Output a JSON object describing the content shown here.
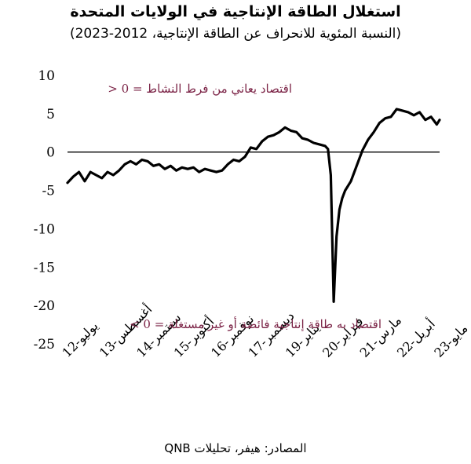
{
  "chart_data": {
    "type": "line",
    "title": "استغلال الطاقة الإنتاجية في الولايات المتحدة",
    "subtitle": "(النسبة المئوية للانحراف عن الطاقة الإنتاجية، 2012-2023)",
    "source": "المصادر: هيفر، تحليلات QNB",
    "ylim": [
      -25,
      10
    ],
    "yticks": [
      10,
      5,
      0,
      -5,
      -10,
      -15,
      -20,
      -25
    ],
    "ytick_labels": [
      "10",
      "5",
      "0",
      "-5",
      "-10",
      "-15",
      "-20",
      "-25"
    ],
    "xlim": [
      "2012-07",
      "2023-05"
    ],
    "xticks": [
      "2012-07",
      "2013-08",
      "2014-09",
      "2015-10",
      "2016-11",
      "2017-12",
      "2019-01",
      "2020-02",
      "2021-03",
      "2022-04",
      "2023-05"
    ],
    "xtick_labels": [
      "يوليو-12",
      "أغسطس-13",
      "سبتمبر-14",
      "أكتوبر-15",
      "نوفمبر-16",
      "ديسمبر-17",
      "يناير-19",
      "فبراير-20",
      "مارس-21",
      "أبريل-22",
      "مايو-23"
    ],
    "grid": false,
    "zero_line": true,
    "annotations": [
      {
        "text": "اقتصاد يعاني من فرط النشاط = 0 <",
        "color": "#7b2346"
      },
      {
        "text": "اقتصاد به طاقة إنتاجية فائضة أو غير مستغلة = 0 >",
        "color": "#7b2346"
      }
    ],
    "series": [
      {
        "color": "#000000",
        "x": [
          "2012-07",
          "2012-09",
          "2012-11",
          "2013-01",
          "2013-03",
          "2013-05",
          "2013-07",
          "2013-09",
          "2013-11",
          "2014-01",
          "2014-03",
          "2014-05",
          "2014-07",
          "2014-09",
          "2014-11",
          "2015-01",
          "2015-03",
          "2015-05",
          "2015-07",
          "2015-09",
          "2015-11",
          "2016-01",
          "2016-03",
          "2016-05",
          "2016-07",
          "2016-09",
          "2016-11",
          "2017-01",
          "2017-03",
          "2017-05",
          "2017-07",
          "2017-09",
          "2017-11",
          "2018-01",
          "2018-03",
          "2018-05",
          "2018-07",
          "2018-09",
          "2018-11",
          "2019-01",
          "2019-03",
          "2019-05",
          "2019-07",
          "2019-09",
          "2019-11",
          "2020-01",
          "2020-02",
          "2020-03",
          "2020-04",
          "2020-05",
          "2020-06",
          "2020-07",
          "2020-08",
          "2020-10",
          "2020-12",
          "2021-02",
          "2021-04",
          "2021-06",
          "2021-08",
          "2021-10",
          "2021-12",
          "2022-02",
          "2022-04",
          "2022-06",
          "2022-08",
          "2022-10",
          "2022-12",
          "2023-02",
          "2023-04",
          "2023-05"
        ],
        "values": [
          -4.0,
          -3.2,
          -2.6,
          -3.8,
          -2.6,
          -3.0,
          -3.4,
          -2.6,
          -3.0,
          -2.4,
          -1.6,
          -1.2,
          -1.6,
          -1.0,
          -1.2,
          -1.8,
          -1.6,
          -2.2,
          -1.8,
          -2.4,
          -2.0,
          -2.2,
          -2.0,
          -2.6,
          -2.2,
          -2.4,
          -2.6,
          -2.4,
          -1.6,
          -1.0,
          -1.2,
          -0.6,
          0.6,
          0.4,
          1.4,
          2.0,
          2.2,
          2.6,
          3.2,
          2.8,
          2.6,
          1.8,
          1.6,
          1.2,
          1.0,
          0.8,
          0.4,
          -3.0,
          -19.5,
          -11.0,
          -7.5,
          -6.0,
          -5.0,
          -3.8,
          -1.8,
          0.2,
          1.6,
          2.6,
          3.8,
          4.4,
          4.6,
          5.6,
          5.4,
          5.2,
          4.8,
          5.2,
          4.2,
          4.6,
          3.6,
          4.2
        ]
      }
    ]
  }
}
